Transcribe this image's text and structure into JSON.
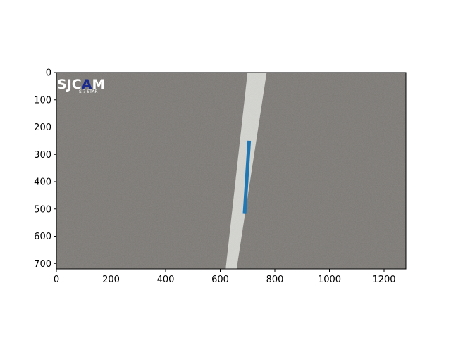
{
  "chart_data": {
    "type": "line",
    "title": "",
    "xlabel": "",
    "ylabel": "",
    "xlim": [
      0,
      1280
    ],
    "ylim": [
      720,
      0
    ],
    "y_inverted": true,
    "grid": false,
    "x_ticks": [
      0,
      200,
      400,
      600,
      800,
      1000,
      1200
    ],
    "y_ticks": [
      0,
      100,
      200,
      300,
      400,
      500,
      600,
      700
    ],
    "series": [
      {
        "color": "#1f77b4",
        "x": [
          689,
          706
        ],
        "y": [
          518,
          250
        ]
      }
    ],
    "background_image": {
      "description_tag": "asphalt-road-with-white-lane-marking",
      "lane_marking_x": [
        [
          620,
          700
        ],
        [
          660,
          770
        ]
      ],
      "logo": {
        "text": "SJCAM",
        "subtext": "SJ7 STAR"
      }
    }
  },
  "colors": {
    "asphalt": "#8b8884",
    "lane_marking": "#d9dad5",
    "series": "#1f77b4",
    "logo_accent": "#1b2a8f"
  }
}
